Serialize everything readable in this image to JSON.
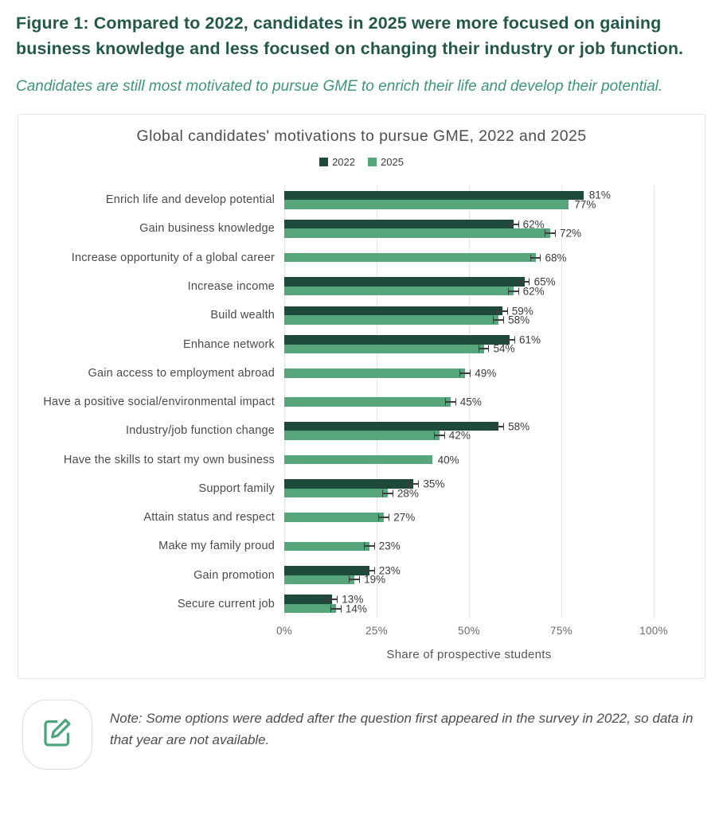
{
  "header": {
    "figure_title": "Figure 1: Compared to 2022, candidates in 2025 were more focused on gaining business knowledge and less focused on changing their industry or job function.",
    "subtitle": "Candidates are still most motivated to pursue GME to enrich their life and develop their potential."
  },
  "note": {
    "text": "Note: Some options were added after the question first appeared in the survey in 2022, so data in that year are not available.",
    "icon": "edit-note-icon"
  },
  "colors": {
    "figure_title_green": "#24584a",
    "subtitle_green": "#3f9577",
    "series_2022": "#1d4a3a",
    "series_2025": "#57a67b",
    "grid_line": "#e4e4e4",
    "chart_title_gray": "#4e4e4e",
    "category_label_gray": "#4a4a4a",
    "error_bar": "#3d3d3d",
    "card_border": "#e2e2e2",
    "note_icon_green": "#4da57e"
  },
  "chart_data": {
    "type": "bar",
    "orientation": "horizontal",
    "title": "Global candidates' motivations to pursue GME, 2022 and 2025",
    "xlabel": "Share of prospective students",
    "x_ticks": [
      "0%",
      "25%",
      "50%",
      "75%",
      "100%"
    ],
    "xlim": [
      0,
      100
    ],
    "grid": true,
    "legend_position": "top-center",
    "value_label_format": "percent",
    "legend": [
      {
        "name": "2022",
        "color": "#1d4a3a"
      },
      {
        "name": "2025",
        "color": "#57a67b"
      }
    ],
    "categories": [
      "Enrich life and develop potential",
      "Gain business knowledge",
      "Increase opportunity of a global career",
      "Increase income",
      "Build wealth",
      "Enhance network",
      "Gain access to employment abroad",
      "Have a positive social/environmental impact",
      "Industry/job function change",
      "Have the skills to start my own business",
      "Support family",
      "Attain status and respect",
      "Make my family proud",
      "Gain promotion",
      "Secure current job"
    ],
    "series": [
      {
        "name": "2022",
        "color": "#1d4a3a",
        "values": [
          81,
          62,
          null,
          65,
          59,
          61,
          null,
          null,
          58,
          null,
          35,
          null,
          null,
          23,
          13
        ]
      },
      {
        "name": "2025",
        "color": "#57a67b",
        "values": [
          77,
          72,
          68,
          62,
          58,
          54,
          49,
          45,
          42,
          40,
          28,
          27,
          23,
          19,
          14
        ]
      }
    ],
    "error_bars": {
      "2022": [
        null,
        1.5,
        null,
        1.5,
        1.5,
        1.5,
        null,
        null,
        1.5,
        null,
        1.5,
        null,
        null,
        1.5,
        1.5
      ],
      "2025": [
        null,
        1.5,
        1.5,
        1.5,
        1.5,
        1.5,
        1.5,
        1.5,
        1.5,
        null,
        1.5,
        1.5,
        1.5,
        1.5,
        1.5
      ]
    }
  }
}
